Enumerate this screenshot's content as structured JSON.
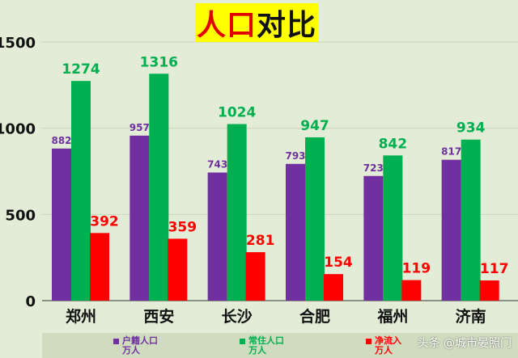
{
  "title": {
    "part1": "人口",
    "part2": "对比"
  },
  "chart_data": {
    "type": "bar",
    "title": "人口对比",
    "categories": [
      "郑州",
      "西安",
      "长沙",
      "合肥",
      "福州",
      "济南"
    ],
    "ylim": [
      0,
      1500
    ],
    "yticks": [
      0,
      500,
      1000,
      1500
    ],
    "grid": true,
    "legend_position": "bottom",
    "series": [
      {
        "name": "户籍人口万人",
        "color": "#7030a0",
        "label_color": "#7030a0",
        "values": [
          882,
          957,
          743,
          793,
          723,
          817
        ]
      },
      {
        "name": "常住人口万人",
        "color": "#00b050",
        "label_color": "#00b050",
        "values": [
          1274,
          1316,
          1024,
          947,
          842,
          934
        ]
      },
      {
        "name": "净流入万人",
        "color": "#ff0000",
        "label_color": "#ff0000",
        "values": [
          392,
          359,
          281,
          154,
          119,
          117
        ]
      }
    ]
  },
  "legend": [
    {
      "line1": "户籍人口",
      "line2": "万人",
      "color": "#7030a0"
    },
    {
      "line1": "常住人口",
      "line2": "万人",
      "color": "#00b050"
    },
    {
      "line1": "净流入",
      "line2": "万人",
      "color": "#ff0000"
    }
  ],
  "watermark": "头条 @城市晏照门"
}
